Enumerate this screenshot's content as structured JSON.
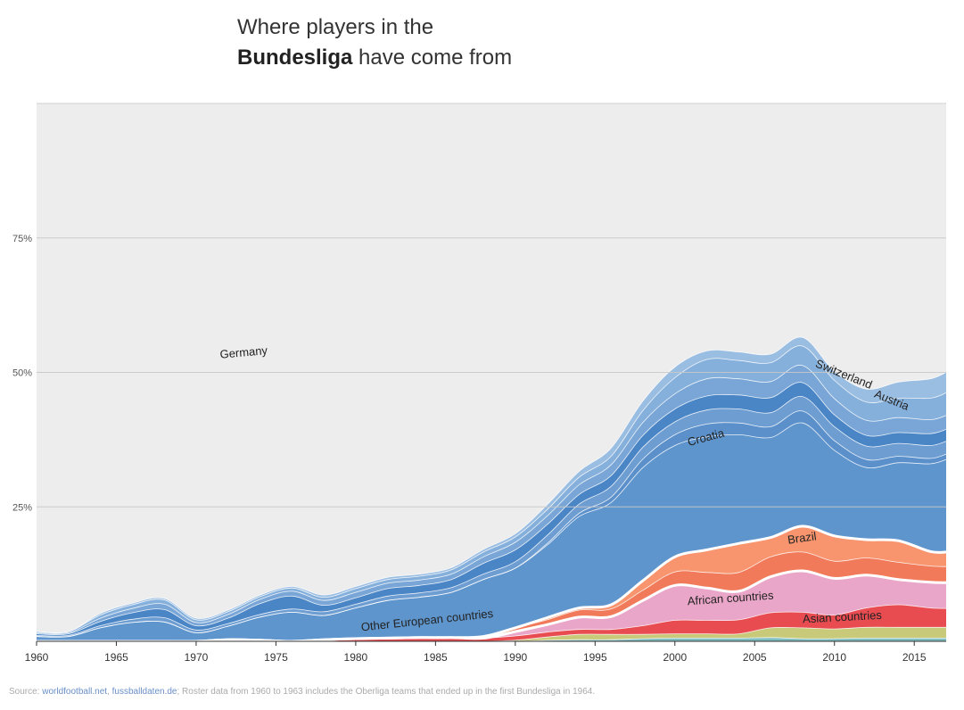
{
  "title": {
    "line1": "Where players in the",
    "line2_bold": "Bundesliga",
    "line2_rest": " have come from"
  },
  "source": {
    "prefix": "Source: ",
    "link1": "worldfootball.net",
    "sep": ", ",
    "link2": "fussballdaten.de",
    "note": "; Roster data from 1960 to 1963 includes the Oberliga teams that ended up in the first Bundesliga in 1964."
  },
  "chart_data": {
    "type": "area",
    "stacked": true,
    "title": "Where players in the Bundesliga have come from",
    "xlim": [
      1960,
      2017
    ],
    "ylim": [
      0,
      100
    ],
    "x_ticks": [
      1960,
      1965,
      1970,
      1975,
      1980,
      1985,
      1990,
      1995,
      2000,
      2005,
      2010,
      2015
    ],
    "y_ticks": [
      {
        "value": 25,
        "label": "25%"
      },
      {
        "value": 50,
        "label": "50%"
      },
      {
        "value": 75,
        "label": "75%"
      }
    ],
    "grid": true,
    "x": [
      1960,
      1962,
      1964,
      1966,
      1968,
      1970,
      1972,
      1974,
      1976,
      1978,
      1980,
      1982,
      1984,
      1986,
      1988,
      1990,
      1992,
      1994,
      1996,
      1998,
      2000,
      2002,
      2004,
      2006,
      2008,
      2010,
      2012,
      2014,
      2016,
      2017
    ],
    "series": [
      {
        "name": "",
        "color": "#7fbfc2",
        "values": [
          0,
          0,
          0,
          0,
          0,
          0,
          0,
          0,
          0,
          0,
          0,
          0,
          0,
          0,
          0,
          0,
          0.2,
          0.3,
          0.3,
          0.5,
          0.6,
          0.6,
          0.6,
          0.7,
          0.5,
          0.5,
          0.6,
          0.6,
          0.6,
          0.6
        ]
      },
      {
        "name": "",
        "color": "#c9c97a",
        "values": [
          0,
          0,
          0,
          0,
          0,
          0,
          0,
          0,
          0,
          0,
          0,
          0,
          0,
          0,
          0,
          0.2,
          0.6,
          1.0,
          1.0,
          0.8,
          0.8,
          0.8,
          0.8,
          1.8,
          2.0,
          1.8,
          2.0,
          2.0,
          2.0,
          2.0
        ]
      },
      {
        "name": "Asian countries",
        "color": "#e84b50",
        "values": [
          0,
          0,
          0,
          0,
          0,
          0,
          0.3,
          0.2,
          0,
          0.3,
          0.5,
          0.6,
          0.7,
          0.7,
          0.6,
          0.8,
          0.9,
          0.9,
          0.9,
          1.6,
          2.5,
          2.5,
          2.6,
          2.8,
          2.9,
          2.6,
          3.6,
          4.2,
          3.6,
          3.5
        ]
      },
      {
        "name": "African countries",
        "color": "#eaa6c8",
        "values": [
          0,
          0,
          0,
          0,
          0,
          0,
          0,
          0,
          0,
          0,
          0,
          0,
          0,
          0,
          0,
          0.8,
          1.4,
          2.3,
          2.4,
          4.7,
          6.5,
          6.0,
          5.3,
          6.7,
          7.7,
          6.8,
          6.1,
          4.7,
          4.8,
          4.8
        ]
      },
      {
        "name": "",
        "color": "#f17a5a",
        "values": [
          0,
          0,
          0,
          0,
          0,
          0,
          0,
          0,
          0,
          0,
          0,
          0,
          0,
          0,
          0.3,
          0.7,
          0.9,
          1.3,
          1.4,
          1.9,
          2.5,
          2.9,
          3.5,
          3.7,
          3.5,
          3.2,
          3.2,
          3.2,
          3.0,
          3.0
        ]
      },
      {
        "name": "Brazil",
        "color": "#f8956e",
        "values": [
          0,
          0,
          0,
          0,
          0,
          0,
          0,
          0,
          0,
          0,
          0,
          0,
          0,
          0,
          0,
          0,
          0.4,
          0.4,
          0.8,
          1.8,
          2.8,
          4.2,
          5.4,
          3.6,
          4.8,
          4.7,
          3.4,
          4.0,
          2.7,
          2.7
        ]
      },
      {
        "name": "Other European countries",
        "color": "#5f95cd",
        "values": [
          0.9,
          0.9,
          2.5,
          3.5,
          3.6,
          1.6,
          2.5,
          4.3,
          5.4,
          4.5,
          5.7,
          7.0,
          7.5,
          8.4,
          10.6,
          11.1,
          13.5,
          17.0,
          19.0,
          21.0,
          20.7,
          21.0,
          20.2,
          18.6,
          19.2,
          15.9,
          13.4,
          14.5,
          16.3,
          17.2
        ]
      },
      {
        "name": "Croatia",
        "color": "#5b90cb",
        "values": [
          0,
          0,
          0,
          0,
          0,
          0,
          0,
          0,
          0,
          0,
          0,
          0,
          0,
          0,
          0,
          0,
          0.3,
          0.6,
          1.0,
          1.6,
          2.0,
          2.4,
          2.2,
          2.0,
          2.2,
          1.8,
          1.5,
          1.2,
          1.0,
          1.0
        ]
      },
      {
        "name": "",
        "color": "#6e9dd2",
        "values": [
          0.2,
          0.2,
          0.4,
          0.6,
          0.8,
          0.5,
          0.5,
          0.5,
          0.6,
          0.7,
          0.7,
          0.8,
          0.8,
          0.9,
          1.0,
          1.2,
          1.5,
          1.7,
          2.0,
          2.2,
          2.4,
          2.6,
          2.6,
          2.6,
          2.7,
          2.6,
          2.5,
          2.4,
          2.4,
          2.4
        ]
      },
      {
        "name": "",
        "color": "#4a85c6",
        "values": [
          0.3,
          0.3,
          0.8,
          1.2,
          1.5,
          0.8,
          1.0,
          2.0,
          2.4,
          1.2,
          1.2,
          1.4,
          1.4,
          1.5,
          2.0,
          2.2,
          2.0,
          1.8,
          2.0,
          2.2,
          2.4,
          2.6,
          2.6,
          2.8,
          2.6,
          2.2,
          2.0,
          2.0,
          2.2,
          2.2
        ]
      },
      {
        "name": "Austria",
        "color": "#79a6d6",
        "values": [
          0.2,
          0.2,
          0.6,
          0.8,
          1.0,
          0.6,
          0.7,
          0.8,
          0.9,
          0.9,
          1.0,
          1.0,
          1.0,
          1.0,
          1.2,
          1.4,
          1.6,
          1.8,
          2.0,
          2.4,
          2.8,
          3.2,
          3.0,
          3.0,
          3.2,
          3.0,
          2.8,
          2.8,
          2.6,
          2.6
        ]
      },
      {
        "name": "Switzerland",
        "color": "#86b0dc",
        "values": [
          0.2,
          0.2,
          0.6,
          0.7,
          0.8,
          0.5,
          0.5,
          0.5,
          0.6,
          0.6,
          0.7,
          0.7,
          0.7,
          0.8,
          0.9,
          1.0,
          1.2,
          1.4,
          1.6,
          2.2,
          3.0,
          3.6,
          3.4,
          3.5,
          3.6,
          3.4,
          3.4,
          3.6,
          4.0,
          4.2
        ]
      },
      {
        "name": "",
        "color": "#9abde2",
        "values": [
          0,
          0,
          0.3,
          0.3,
          0.3,
          0.3,
          0.3,
          0.3,
          0.3,
          0.4,
          0.4,
          0.4,
          0.4,
          0.4,
          0.5,
          0.6,
          0.9,
          1.1,
          1.5,
          1.8,
          2.0,
          1.6,
          1.6,
          1.6,
          1.6,
          1.7,
          2.4,
          3.0,
          3.6,
          3.8
        ]
      }
    ],
    "remainder_series": {
      "name": "Germany",
      "color": "#ededed"
    },
    "annotations": [
      {
        "text": "Germany",
        "x": 1973,
        "y": 53,
        "rotate": -5
      },
      {
        "text": "Switzerland",
        "x": 2010.5,
        "y": 49,
        "rotate": 22
      },
      {
        "text": "Austria",
        "x": 2013.5,
        "y": 44.2,
        "rotate": 22
      },
      {
        "text": "Croatia",
        "x": 2002,
        "y": 37.2,
        "rotate": -15
      },
      {
        "text": "Brazil",
        "x": 2008,
        "y": 18.5,
        "rotate": -8
      },
      {
        "text": "African countries",
        "x": 2003.5,
        "y": 7.3,
        "rotate": -4
      },
      {
        "text": "Other European countries",
        "x": 1984.5,
        "y": 3.2,
        "rotate": -6
      },
      {
        "text": "Asian countries",
        "x": 2010.5,
        "y": 3.8,
        "rotate": -3
      }
    ],
    "white_separators_after_series": [
      3,
      5
    ]
  }
}
